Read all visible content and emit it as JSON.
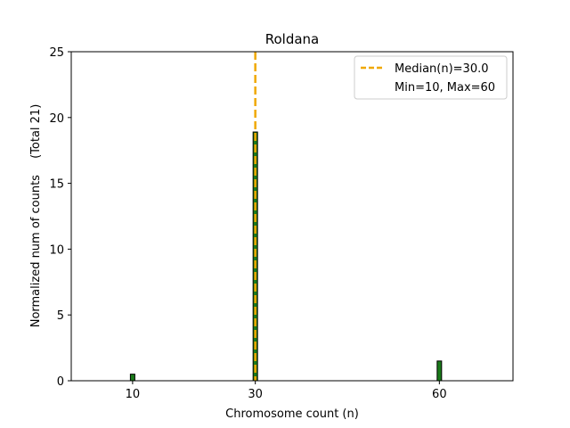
{
  "chart_data": {
    "type": "bar",
    "title": "Roldana",
    "xlabel": "Chromosome count (n)",
    "ylabel": "Normalized num of counts",
    "ylabel_extra": "(Total 21)",
    "xlim": [
      0,
      72
    ],
    "ylim": [
      0,
      25
    ],
    "xticks": [
      10,
      30,
      60
    ],
    "yticks": [
      0,
      5,
      10,
      15,
      20,
      25
    ],
    "bars": [
      {
        "x": 10,
        "value": 0.5
      },
      {
        "x": 30,
        "value": 18.9
      },
      {
        "x": 60,
        "value": 1.5
      }
    ],
    "median_line": {
      "x": 30,
      "label": "Median(n)=30.0"
    },
    "legend_extra": "Min=10, Max=60",
    "legend_position": "top-right",
    "colors": {
      "bar_fill": "#1a7a1a",
      "bar_edge": "#000000",
      "median": "#f0a800"
    }
  }
}
